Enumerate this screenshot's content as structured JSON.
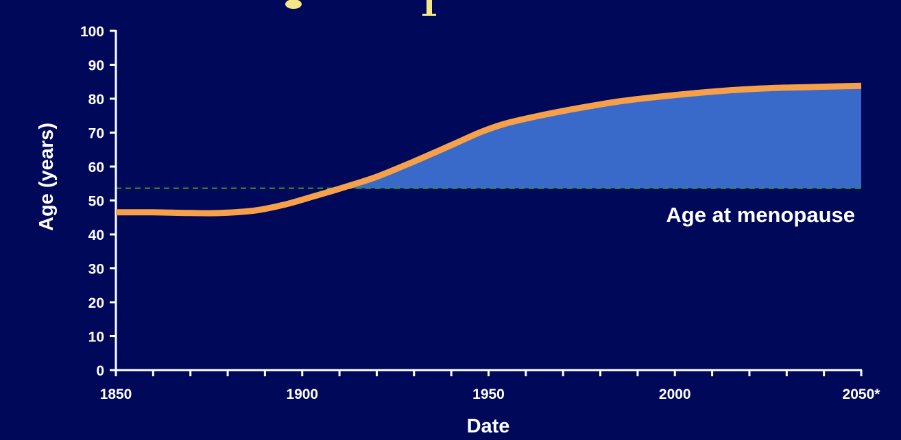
{
  "colors": {
    "background": "#00085a",
    "axis": "#ffffff",
    "line": "#f7a04a",
    "fill": "#3a6ac9",
    "reference_line": "#2aa12a",
    "title_fragment": "#f5e68a"
  },
  "chart_data": {
    "type": "area",
    "title": "",
    "xlabel": "Date",
    "ylabel": "Age (years)",
    "xlim": [
      1850,
      2050
    ],
    "ylim": [
      0,
      100
    ],
    "x_ticks": [
      {
        "value": 1850,
        "label": "1850"
      },
      {
        "value": 1900,
        "label": "1900"
      },
      {
        "value": 1950,
        "label": "1950"
      },
      {
        "value": 2000,
        "label": "2000"
      },
      {
        "value": 2050,
        "label": "2050*"
      }
    ],
    "x_minor_step": 10,
    "y_ticks": [
      {
        "value": 0,
        "label": "0"
      },
      {
        "value": 10,
        "label": "10"
      },
      {
        "value": 20,
        "label": "20"
      },
      {
        "value": 30,
        "label": "30"
      },
      {
        "value": 40,
        "label": "40"
      },
      {
        "value": 50,
        "label": "50"
      },
      {
        "value": 60,
        "label": "60"
      },
      {
        "value": 70,
        "label": "70"
      },
      {
        "value": 80,
        "label": "80"
      },
      {
        "value": 90,
        "label": "90"
      },
      {
        "value": 100,
        "label": "100"
      }
    ],
    "grid": false,
    "legend": "none",
    "series": [
      {
        "x": [
          1850,
          1860,
          1870,
          1878,
          1887,
          1895,
          1903,
          1911,
          1920,
          1930,
          1940,
          1948,
          1955,
          1965,
          1975,
          1985,
          1995,
          2005,
          2015,
          2025,
          2035,
          2050
        ],
        "y": [
          46.5,
          46.5,
          46.3,
          46.3,
          47.0,
          48.7,
          51.2,
          53.8,
          57.0,
          61.5,
          66.3,
          70.2,
          72.8,
          75.3,
          77.4,
          79.2,
          80.5,
          81.6,
          82.5,
          83.1,
          83.4,
          83.8
        ]
      }
    ],
    "reference_line": {
      "y": 53.6,
      "style": "dashed",
      "label": "Age at menopause"
    }
  }
}
